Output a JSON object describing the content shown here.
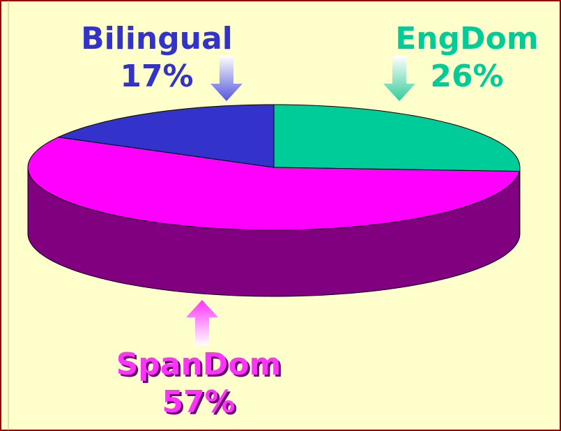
{
  "chart_data": {
    "type": "pie",
    "categories": [
      "EngDom",
      "SpanDom",
      "Bilingual"
    ],
    "values": [
      26,
      57,
      17
    ],
    "value_labels": [
      "26%",
      "57%",
      "17%"
    ],
    "colors": [
      "#00cc99",
      "#ff00ff",
      "#3333cc"
    ],
    "side_colors": [
      "#006650",
      "#800080",
      "#1a1a66"
    ],
    "label_colors": [
      "#00cc99",
      "#ff33ff",
      "#3333cc"
    ]
  }
}
